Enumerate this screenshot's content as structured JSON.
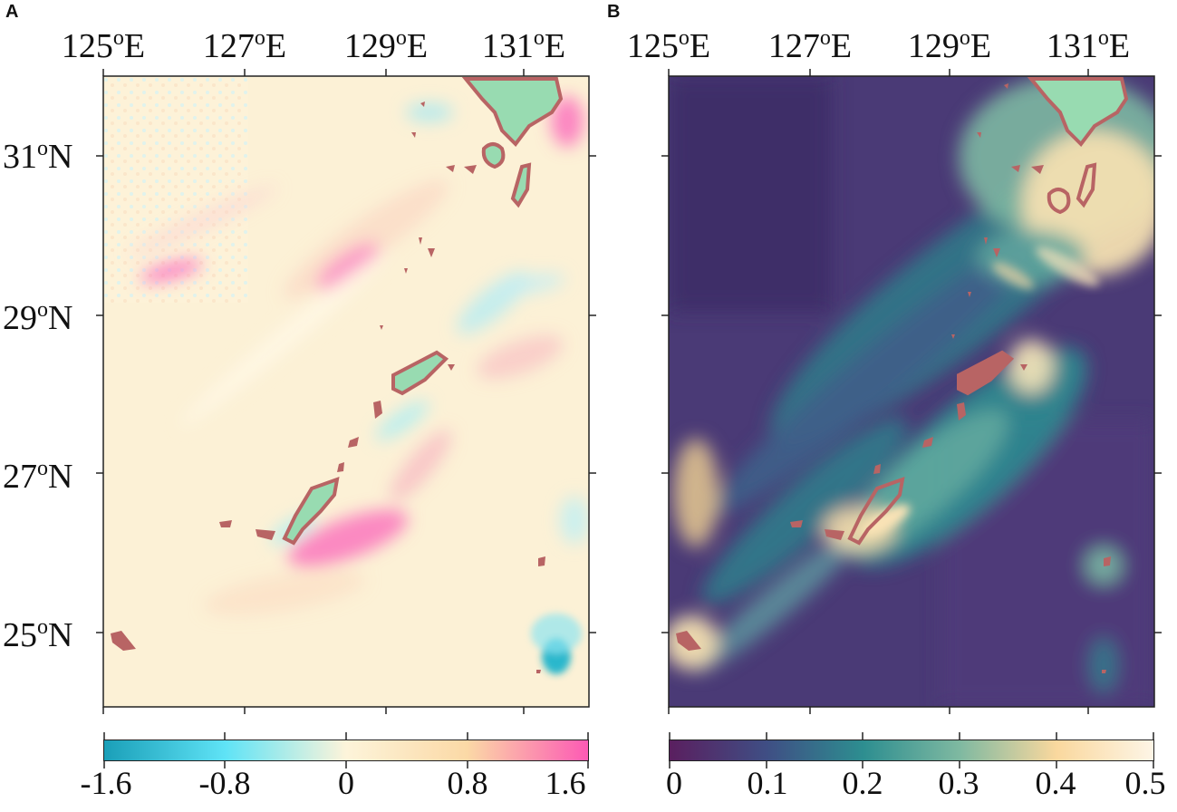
{
  "panels": [
    {
      "letter": "A",
      "lon_labels": [
        "125",
        "127",
        "129",
        "131"
      ],
      "lat_labels": [
        "31",
        "29",
        "27",
        "25"
      ],
      "colorbar": {
        "ticks": [
          "-1.6",
          "-0.8",
          "0",
          "0.8",
          "1.6"
        ],
        "colors": [
          "#1a9fb8",
          "#5fe3f6",
          "#fdf4da",
          "#fbd9a6",
          "#fd5ab4"
        ]
      }
    },
    {
      "letter": "B",
      "lon_labels": [
        "125",
        "127",
        "129",
        "131"
      ],
      "lat_labels": [
        "31",
        "29",
        "27",
        "25"
      ],
      "colorbar": {
        "ticks": [
          "0",
          "0.1",
          "0.2",
          "0.3",
          "0.4",
          "0.5"
        ],
        "colors": [
          "#5a1f5f",
          "#3f4e84",
          "#2d8e90",
          "#7fb9a1",
          "#fad89e",
          "#fdf5e6"
        ]
      }
    }
  ],
  "degree_symbol": "o",
  "east_suffix": "E",
  "north_suffix": "N",
  "colors": {
    "land_fill": "#98dbb1",
    "coast_outline": "#b86464",
    "coast_halo": "#ffffff"
  }
}
